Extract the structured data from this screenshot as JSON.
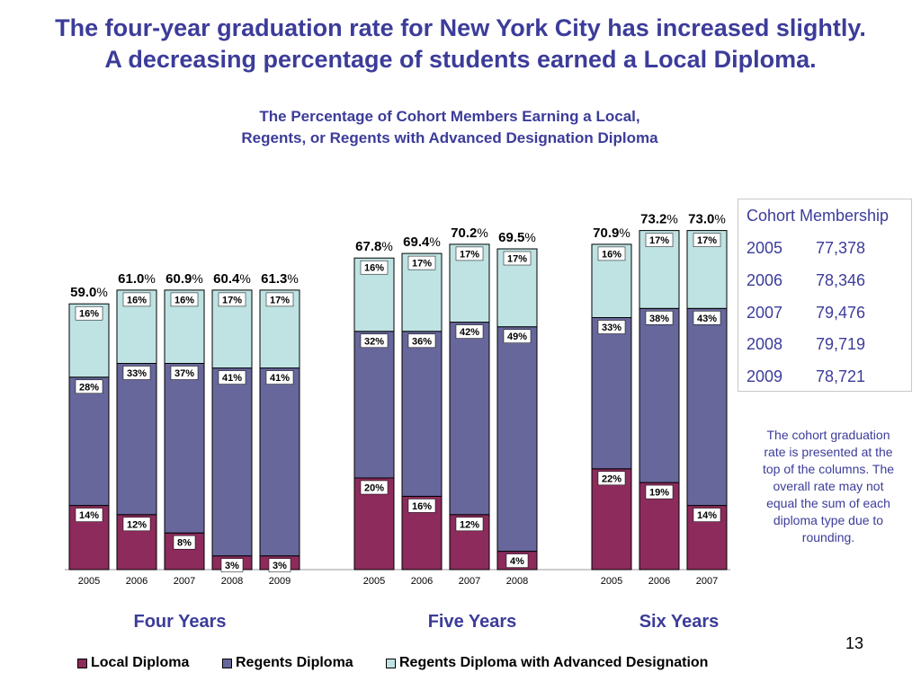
{
  "slide": {
    "title_line1": "The four-year graduation rate for New York City has increased slightly.",
    "title_line2": "A decreasing percentage of students earned a Local Diploma.",
    "page_number": "13"
  },
  "chart_data": {
    "type": "bar",
    "stacked": true,
    "title_line1": "The Percentage of Cohort Members Earning a Local,",
    "title_line2": "Regents, or Regents with Advanced Designation Diploma",
    "groups": [
      {
        "name": "Four Years",
        "categories": [
          "2005",
          "2006",
          "2007",
          "2008",
          "2009"
        ],
        "totals": [
          "59.0",
          "61.0",
          "60.9",
          "60.4",
          "61.3"
        ],
        "series": {
          "local": [
            14,
            12,
            8,
            3,
            3
          ],
          "regents": [
            28,
            33,
            37,
            41,
            41
          ],
          "advanced": [
            16,
            16,
            16,
            17,
            17
          ]
        }
      },
      {
        "name": "Five Years",
        "categories": [
          "2005",
          "2006",
          "2007",
          "2008"
        ],
        "totals": [
          "67.8",
          "69.4",
          "70.2",
          "69.5"
        ],
        "series": {
          "local": [
            20,
            16,
            12,
            4
          ],
          "regents": [
            32,
            36,
            42,
            49
          ],
          "advanced": [
            16,
            17,
            17,
            17
          ]
        }
      },
      {
        "name": "Six Years",
        "categories": [
          "2005",
          "2006",
          "2007"
        ],
        "totals": [
          "70.9",
          "73.2",
          "73.0"
        ],
        "series": {
          "local": [
            22,
            19,
            14
          ],
          "regents": [
            33,
            38,
            43
          ],
          "advanced": [
            16,
            17,
            17
          ]
        }
      }
    ],
    "legend": [
      {
        "key": "local",
        "label": "Local Diploma",
        "color": "#8c2b5c"
      },
      {
        "key": "regents",
        "label": "Regents Diploma",
        "color": "#67679c"
      },
      {
        "key": "advanced",
        "label": "Regents Diploma with Advanced Designation",
        "color": "#bfe3e3"
      }
    ],
    "total_suffix": "%",
    "value_suffix": "%"
  },
  "cohort": {
    "title": "Cohort Membership",
    "rows": [
      {
        "year": "2005",
        "count": "77,378"
      },
      {
        "year": "2006",
        "count": "78,346"
      },
      {
        "year": "2007",
        "count": "79,476"
      },
      {
        "year": "2008",
        "count": "79,719"
      },
      {
        "year": "2009",
        "count": "78,721"
      }
    ]
  },
  "note": "The cohort graduation rate is presented at the top of the columns. The overall rate may not equal the sum of each diploma type due to rounding."
}
